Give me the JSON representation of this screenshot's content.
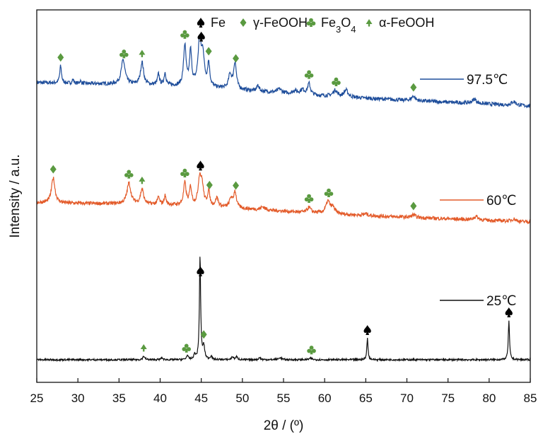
{
  "chart_data": {
    "type": "line",
    "title": "",
    "xlabel": "2θ / (º)",
    "ylabel": "Intensity / a.u.",
    "xlim": [
      25,
      85
    ],
    "x_ticks": [
      25,
      30,
      35,
      40,
      45,
      50,
      55,
      60,
      65,
      70,
      75,
      80,
      85
    ],
    "y_ticks": [],
    "grid": false,
    "legend_position": "top-right",
    "phases": [
      {
        "name": "Fe",
        "name_main": "Fe",
        "name_sub": "",
        "name_tail": "",
        "marker": "spade",
        "color": "#000000"
      },
      {
        "name": "γ-FeOOH",
        "name_main": "γ-FeOOH",
        "name_sub": "",
        "name_tail": "",
        "marker": "diamond",
        "color": "#5a9a40"
      },
      {
        "name": "Fe3O4",
        "name_main": "Fe",
        "name_sub": "3",
        "name_tail": "O",
        "name_sub2": "4",
        "marker": "club",
        "color": "#5a9a40"
      },
      {
        "name": "α-FeOOH",
        "name_main": "α-FeOOH",
        "name_sub": "",
        "name_tail": "",
        "marker": "triangle",
        "color": "#5a9a40"
      }
    ],
    "series": [
      {
        "name": "97.5℃",
        "color": "#1f4e9b",
        "peaks": [
          {
            "x": 27.9,
            "h": 0.55,
            "w": 0.13
          },
          {
            "x": 29.4,
            "h": 0.12,
            "w": 0.12
          },
          {
            "x": 30.3,
            "h": 0.08,
            "w": 0.12
          },
          {
            "x": 35.5,
            "h": 0.78,
            "w": 0.28
          },
          {
            "x": 37.8,
            "h": 0.72,
            "w": 0.22
          },
          {
            "x": 39.8,
            "h": 0.35,
            "w": 0.14
          },
          {
            "x": 40.6,
            "h": 0.4,
            "w": 0.14
          },
          {
            "x": 43.0,
            "h": 1.3,
            "w": 0.18
          },
          {
            "x": 43.7,
            "h": 1.1,
            "w": 0.16
          },
          {
            "x": 44.8,
            "h": 1.45,
            "w": 0.24
          },
          {
            "x": 45.2,
            "h": 0.9,
            "w": 0.2
          },
          {
            "x": 45.9,
            "h": 0.75,
            "w": 0.16
          },
          {
            "x": 48.5,
            "h": 0.45,
            "w": 0.22
          },
          {
            "x": 49.1,
            "h": 0.85,
            "w": 0.2
          },
          {
            "x": 51.9,
            "h": 0.2,
            "w": 0.16
          },
          {
            "x": 54.5,
            "h": 0.12,
            "w": 0.3
          },
          {
            "x": 56.4,
            "h": 0.1,
            "w": 0.3
          },
          {
            "x": 57.3,
            "h": 0.15,
            "w": 0.3
          },
          {
            "x": 58.1,
            "h": 0.35,
            "w": 0.2
          },
          {
            "x": 61.3,
            "h": 0.2,
            "w": 0.3
          },
          {
            "x": 62.6,
            "h": 0.22,
            "w": 0.3
          },
          {
            "x": 70.8,
            "h": 0.15,
            "w": 0.25
          },
          {
            "x": 78.2,
            "h": 0.14,
            "w": 0.3
          },
          {
            "x": 83.0,
            "h": 0.12,
            "w": 0.3
          }
        ],
        "markers": [
          {
            "x": 27.9,
            "type": "diamond"
          },
          {
            "x": 35.6,
            "type": "club"
          },
          {
            "x": 37.8,
            "type": "triangle"
          },
          {
            "x": 43.0,
            "type": "club"
          },
          {
            "x": 45.0,
            "type": "spade"
          },
          {
            "x": 45.9,
            "type": "diamond"
          },
          {
            "x": 49.2,
            "type": "diamond"
          },
          {
            "x": 58.1,
            "type": "club"
          },
          {
            "x": 61.4,
            "type": "club"
          },
          {
            "x": 70.8,
            "type": "diamond"
          }
        ]
      },
      {
        "name": "60℃",
        "color": "#e35b2a",
        "peaks": [
          {
            "x": 27.0,
            "h": 0.85,
            "w": 0.25
          },
          {
            "x": 36.2,
            "h": 0.7,
            "w": 0.28
          },
          {
            "x": 37.8,
            "h": 0.5,
            "w": 0.22
          },
          {
            "x": 39.8,
            "h": 0.25,
            "w": 0.14
          },
          {
            "x": 40.6,
            "h": 0.3,
            "w": 0.14
          },
          {
            "x": 43.0,
            "h": 0.75,
            "w": 0.18
          },
          {
            "x": 43.7,
            "h": 0.6,
            "w": 0.16
          },
          {
            "x": 44.8,
            "h": 0.9,
            "w": 0.22
          },
          {
            "x": 45.1,
            "h": 0.6,
            "w": 0.2
          },
          {
            "x": 45.9,
            "h": 0.5,
            "w": 0.16
          },
          {
            "x": 46.9,
            "h": 0.3,
            "w": 0.2
          },
          {
            "x": 48.6,
            "h": 0.3,
            "w": 0.2
          },
          {
            "x": 49.1,
            "h": 0.55,
            "w": 0.2
          },
          {
            "x": 52.5,
            "h": 0.1,
            "w": 0.3
          },
          {
            "x": 58.1,
            "h": 0.18,
            "w": 0.25
          },
          {
            "x": 60.4,
            "h": 0.4,
            "w": 0.3
          },
          {
            "x": 61.0,
            "h": 0.2,
            "w": 0.3
          },
          {
            "x": 65.0,
            "h": 0.06,
            "w": 0.3
          },
          {
            "x": 70.8,
            "h": 0.1,
            "w": 0.25
          },
          {
            "x": 78.4,
            "h": 0.12,
            "w": 0.3
          },
          {
            "x": 83.0,
            "h": 0.08,
            "w": 0.3
          }
        ],
        "markers": [
          {
            "x": 27.0,
            "type": "diamond"
          },
          {
            "x": 36.2,
            "type": "club"
          },
          {
            "x": 37.8,
            "type": "triangle"
          },
          {
            "x": 43.0,
            "type": "club"
          },
          {
            "x": 44.9,
            "type": "spade"
          },
          {
            "x": 46.0,
            "type": "diamond"
          },
          {
            "x": 49.2,
            "type": "diamond"
          },
          {
            "x": 58.1,
            "type": "club"
          },
          {
            "x": 60.5,
            "type": "club"
          },
          {
            "x": 70.8,
            "type": "diamond"
          }
        ]
      },
      {
        "name": "25℃",
        "color": "#111111",
        "peaks": [
          {
            "x": 38.0,
            "h": 0.05,
            "w": 0.14
          },
          {
            "x": 40.2,
            "h": 0.03,
            "w": 0.12
          },
          {
            "x": 43.3,
            "h": 0.06,
            "w": 0.12
          },
          {
            "x": 44.2,
            "h": 0.07,
            "w": 0.12
          },
          {
            "x": 44.85,
            "h": 1.45,
            "w": 0.09
          },
          {
            "x": 45.3,
            "h": 0.18,
            "w": 0.14
          },
          {
            "x": 46.2,
            "h": 0.05,
            "w": 0.12
          },
          {
            "x": 48.8,
            "h": 0.04,
            "w": 0.14
          },
          {
            "x": 49.3,
            "h": 0.04,
            "w": 0.14
          },
          {
            "x": 52.1,
            "h": 0.03,
            "w": 0.14
          },
          {
            "x": 54.6,
            "h": 0.03,
            "w": 0.2
          },
          {
            "x": 58.3,
            "h": 0.02,
            "w": 0.2
          },
          {
            "x": 65.2,
            "h": 0.3,
            "w": 0.09
          },
          {
            "x": 82.4,
            "h": 0.55,
            "w": 0.09
          }
        ],
        "markers": [
          {
            "x": 38.0,
            "type": "triangle"
          },
          {
            "x": 43.2,
            "type": "club"
          },
          {
            "x": 44.9,
            "type": "spade"
          },
          {
            "x": 45.3,
            "type": "diamond"
          },
          {
            "x": 58.4,
            "type": "club"
          },
          {
            "x": 65.2,
            "type": "spade"
          },
          {
            "x": 82.4,
            "type": "spade"
          }
        ]
      }
    ]
  }
}
